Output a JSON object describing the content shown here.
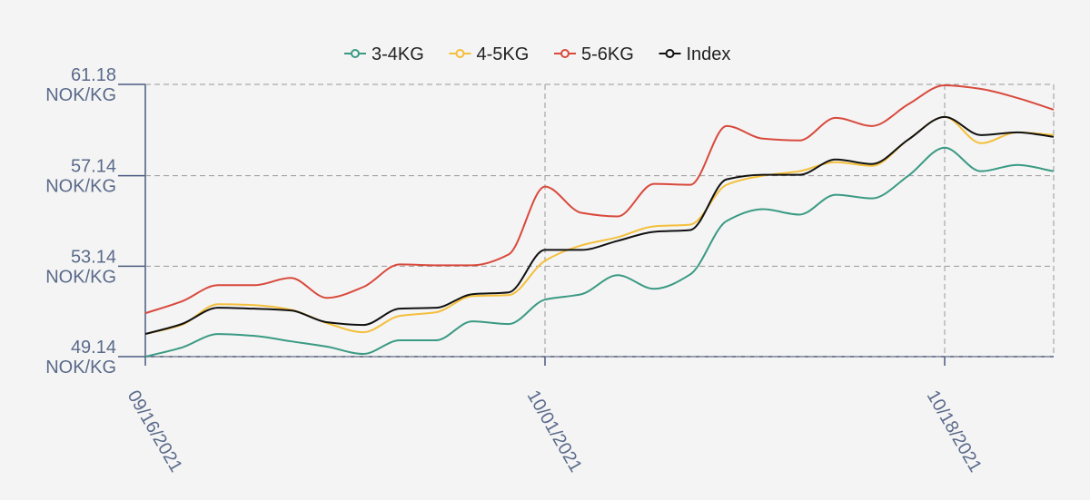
{
  "chart_data": {
    "type": "line",
    "categories": [
      "09/16/2021",
      null,
      null,
      null,
      null,
      null,
      null,
      null,
      null,
      null,
      null,
      "10/01/2021",
      null,
      null,
      null,
      null,
      null,
      null,
      null,
      null,
      null,
      null,
      "10/18/2021",
      null,
      null,
      null
    ],
    "series": [
      {
        "name": "3-4KG",
        "color": "#3a9a83",
        "values": [
          49.14,
          49.54,
          50.14,
          50.06,
          49.82,
          49.58,
          49.26,
          49.86,
          49.86,
          50.7,
          50.58,
          51.66,
          51.9,
          52.74,
          52.14,
          52.78,
          55.14,
          55.66,
          55.42,
          56.3,
          56.14,
          57.14,
          58.38,
          57.34,
          57.62,
          57.34
        ]
      },
      {
        "name": "4-5KG",
        "color": "#f4bf3a",
        "values": [
          50.14,
          50.54,
          51.46,
          51.42,
          51.22,
          50.62,
          50.22,
          50.94,
          51.1,
          51.82,
          51.86,
          53.38,
          54.06,
          54.42,
          54.9,
          54.98,
          56.74,
          57.14,
          57.34,
          57.74,
          57.58,
          58.74,
          59.74,
          58.58,
          59.06,
          58.94
        ]
      },
      {
        "name": "5-6KG",
        "color": "#d9493c",
        "values": [
          51.06,
          51.58,
          52.3,
          52.3,
          52.62,
          51.74,
          52.22,
          53.22,
          53.18,
          53.18,
          53.66,
          56.66,
          55.5,
          55.34,
          56.78,
          56.74,
          59.34,
          58.78,
          58.7,
          59.7,
          59.34,
          60.3,
          61.14,
          60.98,
          60.58,
          60.06
        ]
      },
      {
        "name": "Index",
        "color": "#111111",
        "values": [
          50.14,
          50.58,
          51.3,
          51.26,
          51.18,
          50.66,
          50.54,
          51.26,
          51.3,
          51.9,
          51.98,
          53.86,
          53.86,
          54.26,
          54.66,
          54.74,
          56.98,
          57.18,
          57.18,
          57.86,
          57.66,
          58.74,
          59.74,
          58.94,
          59.06,
          58.86
        ]
      }
    ],
    "ylim": [
      49.14,
      61.18
    ],
    "yticks": [
      {
        "value": 49.14,
        "label": "49.14 NOK/KG"
      },
      {
        "value": 53.14,
        "label": "53.14 NOK/KG"
      },
      {
        "value": 57.14,
        "label": "57.14 NOK/KG"
      },
      {
        "value": 61.18,
        "label": "61.18 NOK/KG"
      }
    ],
    "grid": true,
    "legend": "top"
  }
}
